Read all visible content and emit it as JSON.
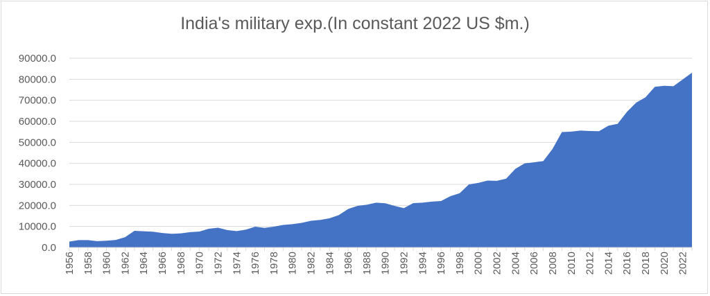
{
  "chart_data": {
    "type": "area",
    "title": "India's military exp.(In constant 2022 US $m.)",
    "xlabel": "",
    "ylabel": "",
    "ylim": [
      0,
      90000
    ],
    "y_ticks": [
      "0.0",
      "10000.0",
      "20000.0",
      "30000.0",
      "40000.0",
      "50000.0",
      "60000.0",
      "70000.0",
      "80000.0",
      "90000.0"
    ],
    "x_ticks": [
      "1956",
      "1958",
      "1960",
      "1962",
      "1964",
      "1966",
      "1968",
      "1970",
      "1972",
      "1974",
      "1976",
      "1978",
      "1980",
      "1982",
      "1984",
      "1986",
      "1988",
      "1990",
      "1992",
      "1994",
      "1996",
      "1998",
      "2000",
      "2002",
      "2004",
      "2006",
      "2008",
      "2010",
      "2012",
      "2014",
      "2016",
      "2018",
      "2020",
      "2022"
    ],
    "grid": true,
    "color": "#4472c4",
    "series": [
      {
        "x": [
          1956,
          1957,
          1958,
          1959,
          1960,
          1961,
          1962,
          1963,
          1964,
          1965,
          1966,
          1967,
          1968,
          1969,
          1970,
          1971,
          1972,
          1973,
          1974,
          1975,
          1976,
          1977,
          1978,
          1979,
          1980,
          1981,
          1982,
          1983,
          1984,
          1985,
          1986,
          1987,
          1988,
          1989,
          1990,
          1991,
          1992,
          1993,
          1994,
          1995,
          1996,
          1997,
          1998,
          1999,
          2000,
          2001,
          2002,
          2003,
          2004,
          2005,
          2006,
          2007,
          2008,
          2009,
          2010,
          2011,
          2012,
          2013,
          2014,
          2015,
          2016,
          2017,
          2018,
          2019,
          2020,
          2021,
          2022,
          2023
        ],
        "values": [
          2800,
          3500,
          3500,
          3000,
          3200,
          3600,
          4900,
          7900,
          7700,
          7500,
          6900,
          6500,
          6700,
          7300,
          7600,
          8900,
          9400,
          8300,
          7800,
          8500,
          9900,
          9300,
          9900,
          10700,
          11100,
          11700,
          12700,
          13100,
          13900,
          15400,
          18300,
          19800,
          20300,
          21300,
          21000,
          19800,
          18700,
          21100,
          21300,
          21800,
          22100,
          24400,
          25800,
          30000,
          30700,
          31800,
          31700,
          32700,
          37400,
          40000,
          40500,
          41100,
          46900,
          54900,
          55100,
          55600,
          55400,
          55300,
          57900,
          58800,
          64500,
          68900,
          71400,
          76400,
          76900,
          76700,
          79900,
          83100
        ]
      }
    ]
  }
}
